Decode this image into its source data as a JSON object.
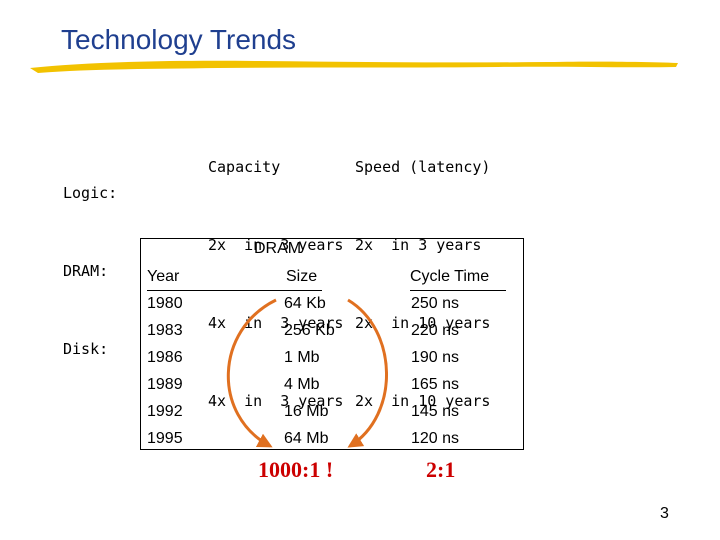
{
  "title": "Technology Trends",
  "trends": {
    "labels": [
      "Logic:",
      "DRAM:",
      "Disk:"
    ],
    "capacity_header": "Capacity",
    "capacity": [
      "2x  in  3 years",
      "4x  in  3 years",
      "4x  in  3 years"
    ],
    "speed_header": "Speed (latency)",
    "speed": [
      "2x  in 3 years",
      "2x  in 10 years",
      "2x  in 10 years"
    ]
  },
  "dram_table": {
    "title": "DRAM",
    "headers": {
      "year": "Year",
      "size": "Size",
      "cycle": "Cycle Time"
    },
    "rows": [
      {
        "year": "1980",
        "size": "64 Kb",
        "cycle": "250 ns"
      },
      {
        "year": "1983",
        "size": "256 Kb",
        "cycle": "220 ns"
      },
      {
        "year": "1986",
        "size": "1 Mb",
        "cycle": "190 ns"
      },
      {
        "year": "1989",
        "size": "4 Mb",
        "cycle": "165 ns"
      },
      {
        "year": "1992",
        "size": "16 Mb",
        "cycle": "145 ns"
      },
      {
        "year": "1995",
        "size": "64 Mb",
        "cycle": "120 ns"
      }
    ],
    "size_ratio": "1000:1 !",
    "cycle_ratio": "2:1"
  },
  "page_number": "3",
  "colors": {
    "title": "#1f3f8f",
    "underline": "#f2c200",
    "arrow": "#e07020",
    "ratio": "#cc0000"
  }
}
